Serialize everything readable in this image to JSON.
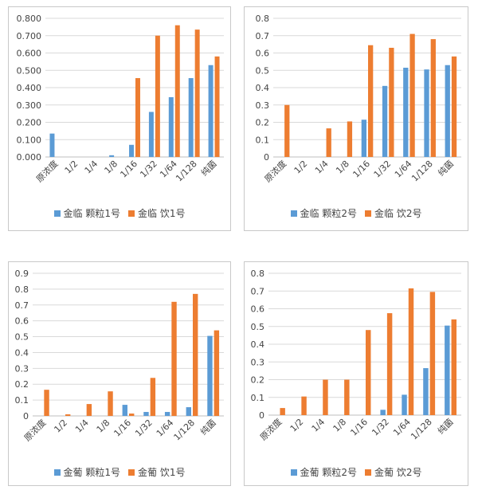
{
  "colors": {
    "series1": "#5B9BD5",
    "series2": "#ED7D31",
    "grid": "#d9d9d9",
    "axis": "#bfbfbf"
  },
  "chart_data": [
    {
      "type": "bar",
      "categories": [
        "原浓度",
        "1/2",
        "1/4",
        "1/8",
        "1/16",
        "1/32",
        "1/64",
        "1/128",
        "纯菌"
      ],
      "series": [
        {
          "name": "金临 颗粒1号",
          "values": [
            0.135,
            0,
            0,
            0.01,
            0.07,
            0.26,
            0.345,
            0.455,
            0.53
          ]
        },
        {
          "name": "金临 饮1号",
          "values": [
            0,
            0,
            0,
            0,
            0.455,
            0.7,
            0.76,
            0.735,
            0.58
          ]
        }
      ],
      "yticks": [
        "0.000",
        "0.100",
        "0.200",
        "0.300",
        "0.400",
        "0.500",
        "0.600",
        "0.700",
        "0.800"
      ],
      "ylim": [
        0,
        0.8
      ],
      "grid": true,
      "legend": "bottom"
    },
    {
      "type": "bar",
      "categories": [
        "原浓度",
        "1/2",
        "1/4",
        "1/8",
        "1/16",
        "1/32",
        "1/64",
        "1/128",
        "纯菌"
      ],
      "series": [
        {
          "name": "金临 颗粒2号",
          "values": [
            0,
            0,
            0,
            0,
            0.215,
            0.41,
            0.515,
            0.505,
            0.53
          ]
        },
        {
          "name": "金临 饮2号",
          "values": [
            0.3,
            0,
            0.165,
            0.205,
            0.645,
            0.63,
            0.71,
            0.68,
            0.58
          ]
        }
      ],
      "yticks": [
        "0",
        "0.1",
        "0.2",
        "0.3",
        "0.4",
        "0.5",
        "0.6",
        "0.7",
        "0.8"
      ],
      "ylim": [
        0,
        0.8
      ],
      "grid": true,
      "legend": "bottom"
    },
    {
      "type": "bar",
      "categories": [
        "原浓度",
        "1/2",
        "1/4",
        "1/8",
        "1/16",
        "1/32",
        "1/64",
        "1/128",
        "纯菌"
      ],
      "series": [
        {
          "name": "金葡 颗粒1号",
          "values": [
            0,
            0,
            0,
            0,
            0.07,
            0.025,
            0.025,
            0.055,
            0.505
          ]
        },
        {
          "name": "金葡 饮1号",
          "values": [
            0.165,
            0.01,
            0.075,
            0.155,
            0.015,
            0.24,
            0.72,
            0.77,
            0.54
          ]
        }
      ],
      "yticks": [
        "0",
        "0.1",
        "0.2",
        "0.3",
        "0.4",
        "0.5",
        "0.6",
        "0.7",
        "0.8",
        "0.9"
      ],
      "ylim": [
        0,
        0.9
      ],
      "grid": true,
      "legend": "bottom"
    },
    {
      "type": "bar",
      "categories": [
        "原浓度",
        "1/2",
        "1/4",
        "1/8",
        "1/16",
        "1/32",
        "1/64",
        "1/128",
        "纯菌"
      ],
      "series": [
        {
          "name": "金葡 颗粒2号",
          "values": [
            0,
            0,
            0,
            0,
            0,
            0.03,
            0.115,
            0.265,
            0.505
          ]
        },
        {
          "name": "金葡 饮2号",
          "values": [
            0.04,
            0.105,
            0.2,
            0.2,
            0.48,
            0.575,
            0.715,
            0.695,
            0.54
          ]
        }
      ],
      "yticks": [
        "0",
        "0.1",
        "0.2",
        "0.3",
        "0.4",
        "0.5",
        "0.6",
        "0.7",
        "0.8"
      ],
      "ylim": [
        0,
        0.8
      ],
      "grid": true,
      "legend": "bottom"
    }
  ]
}
